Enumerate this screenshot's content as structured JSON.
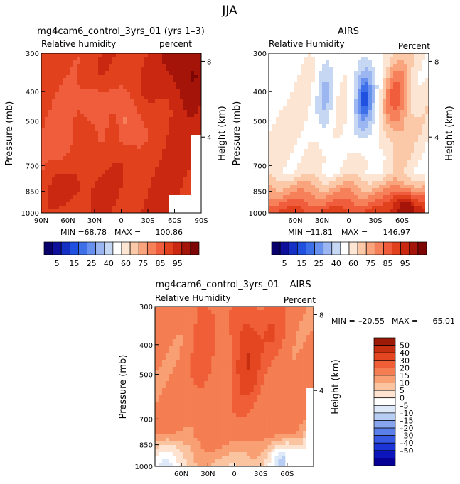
{
  "figure": {
    "title": "JJA",
    "colors": {
      "abs_scale": [
        "#08006b",
        "#0e0f9b",
        "#1530c4",
        "#2050e0",
        "#3d6fe8",
        "#6890ee",
        "#9bb6f1",
        "#c6d7f4",
        "#ffffff",
        "#fde5d4",
        "#fbc8a8",
        "#f9a47d",
        "#f6805a",
        "#f05d3c",
        "#e2411e",
        "#cb2812",
        "#a51409",
        "#7d0604"
      ],
      "diff_scale": [
        "#070096",
        "#0c14bb",
        "#1c35d6",
        "#3658e3",
        "#5b7fe9",
        "#87a5ef",
        "#b8cdf4",
        "#dde8f9",
        "#ffffff",
        "#fde3d0",
        "#fbc4a0",
        "#f8a073",
        "#f47e52",
        "#ef5e36",
        "#e34620",
        "#c52f10",
        "#9d1a07"
      ]
    },
    "panels": [
      {
        "title": "mg4cam6_control_3yrs_01 (yrs 1–3)",
        "left_label": "Relative humidity",
        "right_label": "percent",
        "stats": {
          "min_label": "MIN =",
          "min": "68.78",
          "max_label": "MAX =",
          "max": "100.86"
        }
      },
      {
        "title": "AIRS",
        "left_label": "Relative Humidity",
        "right_label": "Percent",
        "stats": {
          "min_label": "MIN =",
          "min": "11.81",
          "max_label": "MAX =",
          "max": "146.97"
        }
      },
      {
        "title": "mg4cam6_control_3yrs_01 – AIRS",
        "left_label": "Relative Humidity",
        "right_label": "Percent",
        "stats": {
          "min_label": "MIN =",
          "min": "–20.55",
          "max_label": "MAX =",
          "max": "65.01"
        }
      }
    ]
  },
  "chart_data": [
    {
      "type": "heatmap",
      "title": "mg4cam6_control_3yrs_01 (yrs 1–3)",
      "xlabel": "",
      "ylabel": "Pressure (mb)",
      "y2label": "Height (km)",
      "x_ticks": [
        "90N",
        "60N",
        "30N",
        "0",
        "30S",
        "60S",
        "90S"
      ],
      "y_ticks": [
        "300",
        "400",
        "500",
        "700",
        "850",
        "1000"
      ],
      "y2_ticks": [
        "8",
        "4"
      ],
      "xlim": [
        90,
        -90
      ],
      "ylim": [
        1000,
        300
      ],
      "y_scale": "log",
      "stats": {
        "min": 68.78,
        "max": 100.86
      }
    },
    {
      "type": "heatmap",
      "title": "AIRS",
      "ylabel": "Pressure (mb)",
      "y2label": "Height (km)",
      "x_ticks": [
        "60N",
        "30N",
        "0",
        "30S",
        "60S"
      ],
      "y_ticks": [
        "300",
        "400",
        "500",
        "700",
        "850",
        "1000"
      ],
      "y2_ticks": [
        "8",
        "4"
      ],
      "xlim": [
        90,
        -90
      ],
      "ylim": [
        1000,
        300
      ],
      "y_scale": "log",
      "stats": {
        "min": 11.81,
        "max": 146.97
      }
    },
    {
      "type": "heatmap",
      "title": "mg4cam6_control_3yrs_01 – AIRS",
      "ylabel": "Pressure (mb)",
      "y2label": "Height (km)",
      "x_ticks": [
        "60N",
        "30N",
        "0",
        "30S",
        "60S"
      ],
      "y_ticks": [
        "300",
        "400",
        "500",
        "700",
        "850",
        "1000"
      ],
      "y2_ticks": [
        "8",
        "4"
      ],
      "xlim": [
        90,
        -90
      ],
      "ylim": [
        1000,
        300
      ],
      "y_scale": "log",
      "stats": {
        "min": -20.55,
        "max": 65.01
      }
    }
  ],
  "colorbars": [
    {
      "labels": [
        "5",
        "15",
        "25",
        "40",
        "60",
        "75",
        "85",
        "95"
      ]
    },
    {
      "labels": [
        "5",
        "15",
        "25",
        "40",
        "60",
        "75",
        "85",
        "95"
      ]
    },
    {
      "labels": [
        "50",
        "40",
        "30",
        "20",
        "15",
        "10",
        "5",
        "0",
        "–5",
        "–10",
        "–15",
        "–20",
        "–30",
        "–40",
        "–50"
      ]
    }
  ]
}
